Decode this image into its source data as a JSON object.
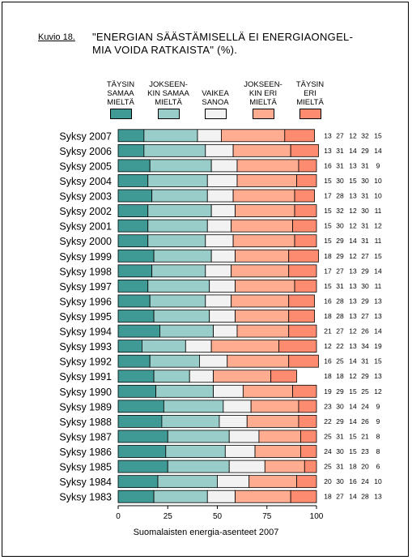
{
  "figure": {
    "number": "Kuvio 18.",
    "title": "\"ENERGIAN SÄÄSTÄMISELLÄ EI ENERGIAONGEL-\nMIA VOIDA RATKAISTA\" (%).",
    "source": "Suomalaisten energia-asenteet 2007"
  },
  "colors": {
    "taysin_samaa": "#3f9a96",
    "jokseenkin_samaa": "#99cdc9",
    "vaikea_sanoa": "#f2f2f2",
    "jokseenkin_eri": "#ffac91",
    "taysin_eri": "#fd8b6f"
  },
  "legend": [
    {
      "label": "TÄYSIN\nSAMAA\nMIELTÄ",
      "color": "#3f9a96"
    },
    {
      "label": "JOKSEEN-\nKIN SAMAA\nMIELTÄ",
      "color": "#99cdc9"
    },
    {
      "label": "VAIKEA\nSANOA",
      "color": "#f2f2f2"
    },
    {
      "label": "JOKSEEN-\nKIN ERI\nMIELTÄ",
      "color": "#ffac91"
    },
    {
      "label": "TÄYSIN\nERI\nMIELTÄ",
      "color": "#fd8b6f"
    }
  ],
  "chart_data": {
    "type": "bar",
    "orientation": "horizontal",
    "stacked": true,
    "title": "\"ENERGIAN SÄÄSTÄMISELLÄ EI ENERGIAONGELMIA VOIDA RATKAISTA\" (%).",
    "xlim": [
      0,
      100
    ],
    "xticks": [
      0,
      25,
      50,
      75,
      100
    ],
    "categories": [
      "Syksy 2007",
      "Syksy 2006",
      "Syksy 2005",
      "Syksy 2004",
      "Syksy 2003",
      "Syksy 2002",
      "Syksy 2001",
      "Syksy 2000",
      "Syksy 1999",
      "Syksy 1998",
      "Syksy 1997",
      "Syksy 1996",
      "Syksy 1995",
      "Syksy 1994",
      "Syksy 1993",
      "Syksy 1992",
      "Syksy 1991",
      "Syksy 1990",
      "Syksy 1989",
      "Syksy 1988",
      "Syksy 1987",
      "Syksy 1986",
      "Syksy 1985",
      "Syksy 1984",
      "Syksy 1983"
    ],
    "series": [
      {
        "name": "TÄYSIN SAMAA MIELTÄ",
        "color": "#3f9a96",
        "values": [
          13,
          13,
          16,
          15,
          17,
          15,
          15,
          15,
          18,
          17,
          15,
          16,
          18,
          21,
          12,
          16,
          18,
          19,
          23,
          22,
          25,
          24,
          25,
          20,
          18
        ]
      },
      {
        "name": "JOKSEENKIN SAMAA MIELTÄ",
        "color": "#99cdc9",
        "values": [
          27,
          31,
          31,
          30,
          28,
          32,
          30,
          29,
          29,
          27,
          31,
          28,
          28,
          27,
          22,
          25,
          18,
          29,
          30,
          29,
          31,
          30,
          31,
          30,
          27
        ]
      },
      {
        "name": "VAIKEA SANOA",
        "color": "#f2f2f2",
        "values": [
          12,
          14,
          13,
          15,
          13,
          12,
          12,
          14,
          12,
          13,
          13,
          13,
          13,
          12,
          13,
          14,
          12,
          15,
          14,
          14,
          15,
          15,
          18,
          16,
          14
        ]
      },
      {
        "name": "JOKSEENKIN ERI MIELTÄ",
        "color": "#ffac91",
        "values": [
          32,
          29,
          31,
          30,
          31,
          30,
          31,
          31,
          27,
          29,
          30,
          29,
          27,
          26,
          34,
          31,
          29,
          25,
          24,
          26,
          21,
          23,
          20,
          24,
          28
        ]
      },
      {
        "name": "TÄYSIN ERI MIELTÄ",
        "color": "#fd8b6f",
        "values": [
          15,
          14,
          9,
          10,
          10,
          11,
          12,
          11,
          15,
          14,
          11,
          13,
          13,
          14,
          19,
          15,
          13,
          12,
          9,
          9,
          8,
          8,
          6,
          10,
          13
        ]
      }
    ]
  }
}
